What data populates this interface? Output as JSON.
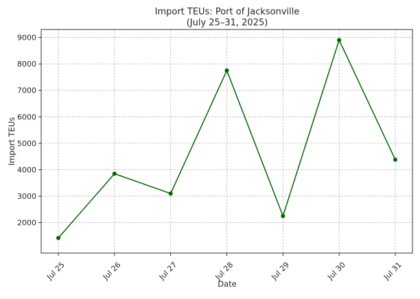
{
  "chart_data": {
    "type": "line",
    "title": "Import TEUs: Port of Jacksonville",
    "subtitle": "(July 25–31, 2025)",
    "xlabel": "Date",
    "ylabel": "Import TEUs",
    "categories": [
      "Jul 25",
      "Jul 26",
      "Jul 27",
      "Jul 28",
      "Jul 29",
      "Jul 30",
      "Jul 31"
    ],
    "series": [
      {
        "values": [
          1420,
          3850,
          3100,
          7750,
          2250,
          8900,
          4380
        ],
        "color": "#006400"
      }
    ],
    "ylim": [
      850,
      9300
    ],
    "yticks": [
      2000,
      3000,
      4000,
      5000,
      6000,
      7000,
      8000,
      9000
    ],
    "grid": true,
    "legend": "none"
  }
}
